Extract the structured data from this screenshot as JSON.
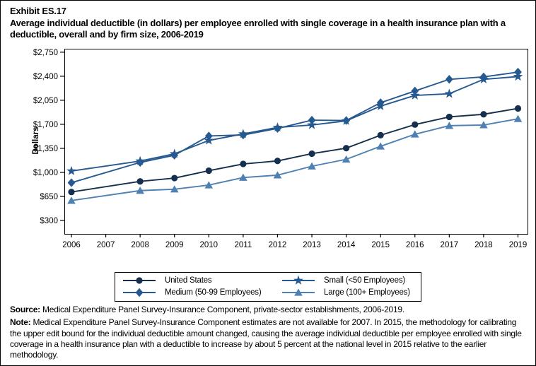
{
  "header": {
    "exhibit_number": "Exhibit ES.17",
    "title": "Average individual deductible (in dollars) per employee enrolled with single coverage in a health insurance plan with a deductible, overall and by firm size, 2006-2019"
  },
  "chart_data": {
    "type": "line",
    "title": "Average individual deductible (in dollars) per employee enrolled with single coverage in a health insurance plan with a deductible, overall and by firm size, 2006-2019",
    "xlabel": "",
    "ylabel": "Dollars",
    "categories": [
      "2006",
      "2007",
      "2008",
      "2009",
      "2010",
      "2011",
      "2012",
      "2013",
      "2014",
      "2015",
      "2016",
      "2017",
      "2018",
      "2019"
    ],
    "missing_years": [
      "2007"
    ],
    "ylim": [
      105,
      2800
    ],
    "yticks": [
      300,
      650,
      1000,
      1350,
      1700,
      2050,
      2400,
      2750
    ],
    "ytick_prefix": "$",
    "grid": false,
    "legend_position": "bottom",
    "series": [
      {
        "name": "United States",
        "marker": "circle",
        "color": "#152F4D",
        "values": [
          715,
          null,
          869,
          917,
          1025,
          1123,
          1167,
          1273,
          1353,
          1541,
          1696,
          1808,
          1846,
          1931
        ]
      },
      {
        "name": "Small (<50 Employees)",
        "marker": "star",
        "color": "#26598F",
        "values": [
          1020,
          null,
          1165,
          1270,
          1465,
          1560,
          1655,
          1690,
          1750,
          1965,
          2120,
          2145,
          2355,
          2395
        ]
      },
      {
        "name": "Medium (50-99 Employees)",
        "marker": "diamond",
        "color": "#26598F",
        "values": [
          850,
          null,
          1145,
          1250,
          1530,
          1545,
          1640,
          1760,
          1755,
          2015,
          2185,
          2355,
          2390,
          2460
        ]
      },
      {
        "name": "Large (100+ Employees)",
        "marker": "triangle-up",
        "color": "#4F80B2",
        "values": [
          590,
          null,
          735,
          755,
          815,
          925,
          960,
          1090,
          1190,
          1380,
          1555,
          1680,
          1690,
          1780
        ]
      }
    ],
    "legend_row_major_order": [
      "United States",
      "Small (<50 Employees)",
      "Medium (50-99 Employees)",
      "Large (100+ Employees)"
    ]
  },
  "footer": {
    "source_label": "Source:",
    "source_text": "Medical Expenditure Panel Survey-Insurance Component, private-sector establishments, 2006-2019.",
    "note_label": "Note:",
    "note_text": "Medical Expenditure Panel Survey-Insurance Component estimates are not available for 2007. In 2015, the methodology for calibrating the upper edit bound for the individual deductible amount changed, causing the average individual deductible per employee enrolled with single coverage in a health insurance plan with a deductible to increase by about 5 percent at the national level in 2015 relative to the earlier methodology."
  }
}
